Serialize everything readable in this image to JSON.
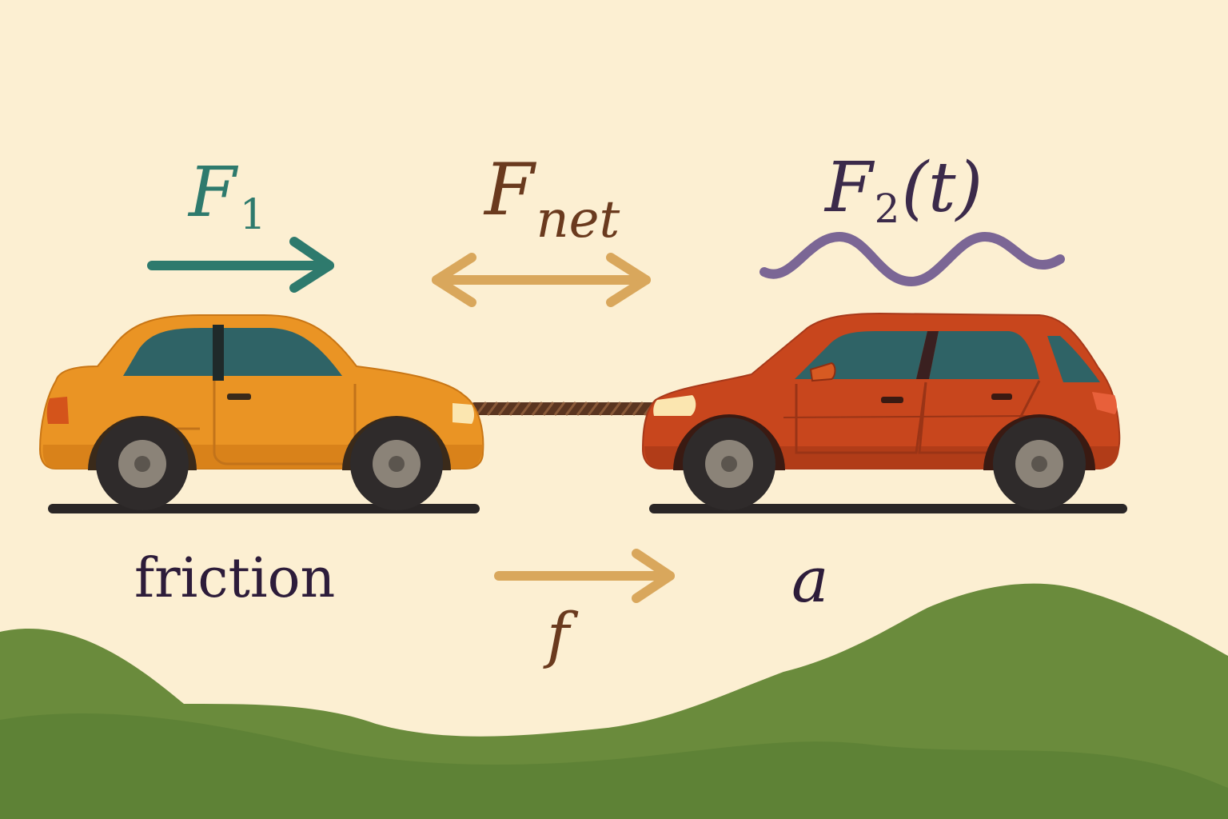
{
  "labels": {
    "f1": {
      "main": "F",
      "sub": "1"
    },
    "fnet": {
      "main": "F",
      "sub": "net"
    },
    "f2": {
      "main": "F",
      "sub": "2",
      "arg": "(t)"
    },
    "friction": "friction",
    "f": "f",
    "a": "a"
  },
  "colors": {
    "background": "#fcefd2",
    "f1": "#2e7a6d",
    "fnet_text": "#6a3a1e",
    "fnet_arrow": "#d9a75c",
    "f2": "#3b2a4a",
    "wave": "#7b6695",
    "text_dark": "#2d1c3a",
    "f_label": "#6a3a1e",
    "orange_car": "#ea9424",
    "red_car": "#c8461d",
    "window": "#2f6366",
    "tire": "#2f2b2b",
    "hub": "#8b8378",
    "ground": "#2a2626",
    "rope": "#5a3520",
    "hill_back": "#6a8b3c",
    "hill_front": "#5a7f33"
  },
  "icons": {
    "left_car": "orange-sedan-icon",
    "right_car": "red-hatchback-icon"
  }
}
